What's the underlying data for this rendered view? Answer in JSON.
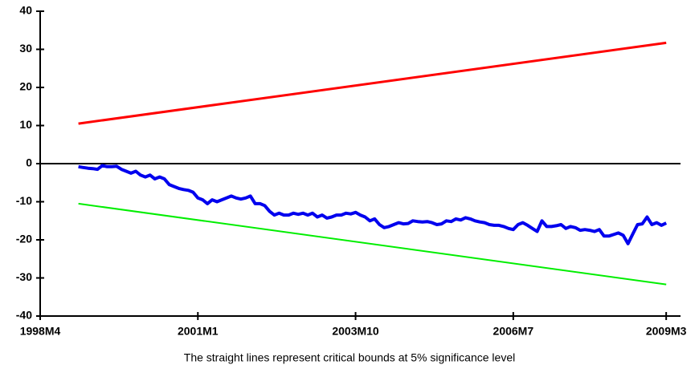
{
  "chart_data": {
    "type": "line",
    "caption": "The straight lines represent critical bounds at 5% significance level",
    "xlim": [
      0,
      134
    ],
    "xticks": [
      {
        "value": 0,
        "label": "1998M4"
      },
      {
        "value": 33,
        "label": "2001M1"
      },
      {
        "value": 66,
        "label": "2003M10"
      },
      {
        "value": 99,
        "label": "2006M7"
      },
      {
        "value": 131,
        "label": "2009M3"
      }
    ],
    "ylim": [
      -40,
      40
    ],
    "yticks": [
      -40,
      -30,
      -20,
      -10,
      0,
      10,
      20,
      30,
      40
    ],
    "zero_line": true,
    "series": [
      {
        "color": "#ff0000",
        "width": 3,
        "x": [
          8,
          131
        ],
        "values": [
          10.5,
          31.7
        ]
      },
      {
        "color": "#00ee00",
        "width": 2,
        "x": [
          8,
          131
        ],
        "values": [
          -10.5,
          -31.7
        ]
      },
      {
        "color": "#0000ee",
        "width": 4,
        "x": [
          8,
          9,
          10,
          11,
          12,
          13,
          14,
          15,
          16,
          17,
          18,
          19,
          20,
          21,
          22,
          23,
          24,
          25,
          26,
          27,
          28,
          29,
          30,
          31,
          32,
          33,
          34,
          35,
          36,
          37,
          38,
          39,
          40,
          41,
          42,
          43,
          44,
          45,
          46,
          47,
          48,
          49,
          50,
          51,
          52,
          53,
          54,
          55,
          56,
          57,
          58,
          59,
          60,
          61,
          62,
          63,
          64,
          65,
          66,
          67,
          68,
          69,
          70,
          71,
          72,
          73,
          74,
          75,
          76,
          77,
          78,
          79,
          80,
          81,
          82,
          83,
          84,
          85,
          86,
          87,
          88,
          89,
          90,
          91,
          92,
          93,
          94,
          95,
          96,
          97,
          98,
          99,
          100,
          101,
          102,
          103,
          104,
          105,
          106,
          107,
          108,
          109,
          110,
          111,
          112,
          113,
          114,
          115,
          116,
          117,
          118,
          119,
          120,
          121,
          122,
          123,
          124,
          125,
          126,
          127,
          128,
          129,
          130,
          131
        ],
        "values": [
          -0.8,
          -1,
          -1.2,
          -1.3,
          -1.5,
          -0.5,
          -0.8,
          -0.8,
          -0.7,
          -1.5,
          -2,
          -2.5,
          -2,
          -3,
          -3.5,
          -3,
          -4,
          -3.5,
          -4,
          -5.5,
          -6,
          -6.5,
          -6.8,
          -7,
          -7.5,
          -9,
          -9.5,
          -10.5,
          -9.5,
          -10,
          -9.5,
          -9,
          -8.5,
          -9,
          -9.3,
          -9,
          -8.5,
          -10.5,
          -10.5,
          -11,
          -12.5,
          -13.5,
          -13,
          -13.5,
          -13.5,
          -13,
          -13.3,
          -13,
          -13.5,
          -13,
          -14,
          -13.5,
          -14.3,
          -14,
          -13.5,
          -13.5,
          -13,
          -13.2,
          -12.8,
          -13.5,
          -14,
          -15,
          -14.5,
          -16,
          -16.8,
          -16.5,
          -16,
          -15.5,
          -15.8,
          -15.7,
          -15,
          -15.2,
          -15.3,
          -15.2,
          -15.5,
          -16,
          -15.8,
          -15,
          -15.2,
          -14.5,
          -14.8,
          -14.2,
          -14.5,
          -15,
          -15.3,
          -15.5,
          -16,
          -16.2,
          -16.2,
          -16.5,
          -17,
          -17.3,
          -16,
          -15.5,
          -16.2,
          -17,
          -17.8,
          -15,
          -16.5,
          -16.5,
          -16.3,
          -16,
          -17,
          -16.5,
          -16.8,
          -17.5,
          -17.3,
          -17.5,
          -17.8,
          -17.3,
          -19,
          -19,
          -18.6,
          -18.2,
          -18.8,
          -21,
          -18.5,
          -16,
          -15.8,
          -14,
          -16,
          -15.5,
          -16.2,
          -15.6
        ]
      }
    ]
  }
}
